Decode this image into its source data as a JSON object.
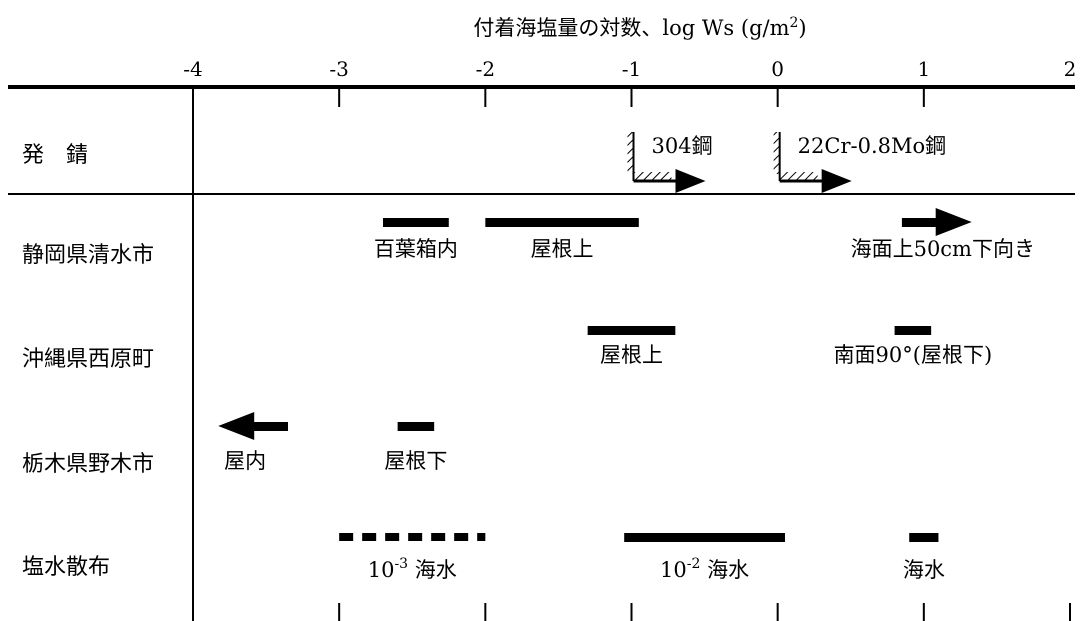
{
  "chart_data": {
    "type": "range",
    "title": "付着海塩量の対数、log Ws (g/m2)",
    "title_parts": {
      "main": "付着海塩量の対数、log Ws (g/m",
      "sup": "2",
      "close": ")"
    },
    "xlim": [
      -4,
      2
    ],
    "ticks": [
      "-4",
      "-3",
      "-2",
      "-1",
      "0",
      "1",
      "2"
    ],
    "rows": [
      {
        "label": "発　錆",
        "items": [
          {
            "kind": "threshold",
            "x": -1,
            "text": "304鋼"
          },
          {
            "kind": "threshold",
            "x": 0,
            "text": "22Cr-0.8Mo鋼"
          }
        ]
      },
      {
        "label": "静岡県清水市",
        "items": [
          {
            "kind": "bar",
            "x": [
              -2.7,
              -2.25
            ],
            "text": "百葉箱内"
          },
          {
            "kind": "bar",
            "x": [
              -2.0,
              -0.95
            ],
            "text": "屋根上"
          },
          {
            "kind": "arrow-right",
            "x": [
              0.85,
              1.3
            ],
            "text": "海面上50cm下向き"
          }
        ]
      },
      {
        "label": "沖縄県西原町",
        "items": [
          {
            "kind": "bar",
            "x": [
              -1.3,
              -0.7
            ],
            "text": "屋根上"
          },
          {
            "kind": "bar",
            "x": [
              0.8,
              1.05
            ],
            "text": "南面90°(屋根下)"
          }
        ]
      },
      {
        "label": "栃木県野木市",
        "items": [
          {
            "kind": "arrow-left",
            "x": [
              -3.8,
              -3.35
            ],
            "text": "屋内"
          },
          {
            "kind": "bar",
            "x": [
              -2.6,
              -2.35
            ],
            "text": "屋根下"
          }
        ]
      },
      {
        "label": "塩水散布",
        "items": [
          {
            "kind": "dashed",
            "x": [
              -3.0,
              -2.0
            ],
            "text": "海水",
            "prefix": "10",
            "sup": "-3"
          },
          {
            "kind": "bar",
            "x": [
              -1.05,
              0.05
            ],
            "text": "海水",
            "prefix": "10",
            "sup": "-2"
          },
          {
            "kind": "bar",
            "x": [
              0.9,
              1.1
            ],
            "text": "海水"
          }
        ]
      }
    ]
  }
}
